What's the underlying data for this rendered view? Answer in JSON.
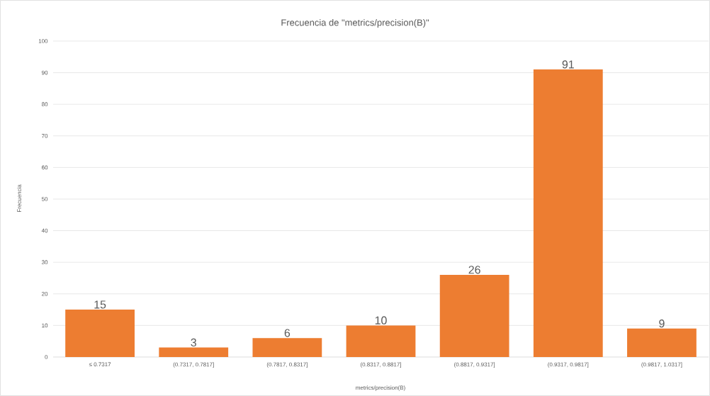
{
  "chart_data": {
    "type": "bar",
    "title": "Frecuencia de \"metrics/precision(B)\"",
    "xlabel": "metrics/precision(B)",
    "ylabel": "Frecuencia",
    "categories": [
      "≤ 0.7317",
      "(0.7317, 0.7817]",
      "(0.7817, 0.8317]",
      "(0.8317, 0.8817]",
      "(0.8817, 0.9317]",
      "(0.9317, 0.9817]",
      "(0.9817, 1.0317]"
    ],
    "values": [
      15,
      3,
      6,
      10,
      26,
      91,
      9
    ],
    "color": "#ed7d31",
    "ylim": [
      0,
      100
    ],
    "yticks": [
      0,
      10,
      20,
      30,
      40,
      50,
      60,
      70,
      80,
      90,
      100
    ],
    "grid": "y",
    "data_labels": true
  }
}
